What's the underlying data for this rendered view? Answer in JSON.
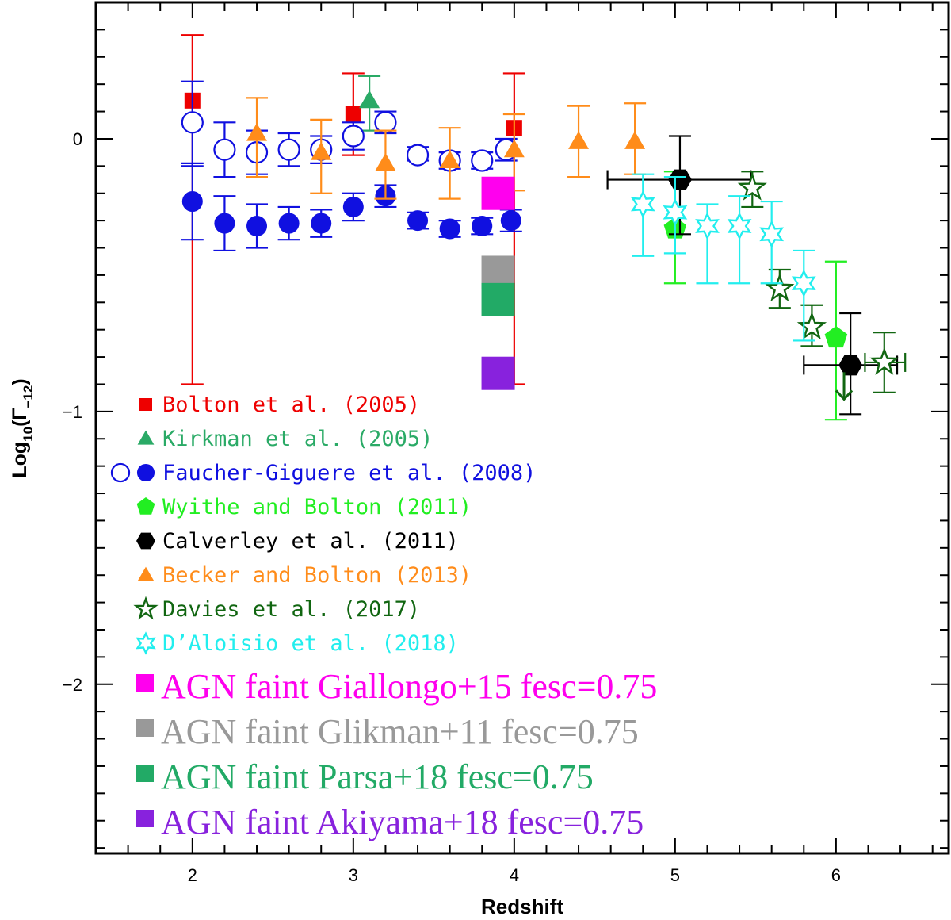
{
  "chart_data": {
    "type": "scatter",
    "xlabel": "Redshift",
    "ylabel_main": "Log",
    "ylabel_sub": "10",
    "ylabel_paren": "(Γ",
    "ylabel_paren_sub": "−12",
    "ylabel_close": ")",
    "xlim": [
      1.4,
      6.7
    ],
    "ylim": [
      -2.62,
      0.5
    ],
    "x_ticks": [
      2,
      3,
      4,
      5,
      6
    ],
    "y_ticks": [
      0,
      -1,
      -2
    ],
    "y_tick_labels": [
      "0",
      "−1",
      "−2"
    ],
    "colors": {
      "bolton": "#ee0000",
      "kirkman": "#2aaa66",
      "faucher": "#1010e0",
      "wyithe": "#22ee22",
      "calverley": "#000000",
      "becker": "#ff8c1a",
      "davies": "#116611",
      "daloisio": "#22eeee",
      "giallongo": "#ff00ee",
      "glikman": "#999999",
      "parsa": "#22aa66",
      "akiyama": "#8822dd"
    },
    "series": [
      {
        "key": "bolton",
        "marker": "square",
        "points": [
          {
            "x": 2.0,
            "y": 0.14,
            "lo": -0.9,
            "hi": 0.38
          },
          {
            "x": 3.0,
            "y": 0.09,
            "lo": -0.06,
            "hi": 0.24
          },
          {
            "x": 4.0,
            "y": 0.04,
            "lo": -0.9,
            "hi": 0.24
          }
        ]
      },
      {
        "key": "kirkman",
        "marker": "triangle",
        "points": [
          {
            "x": 3.1,
            "y": 0.14,
            "lo": 0.03,
            "hi": 0.23
          }
        ]
      },
      {
        "key": "faucher_open",
        "color_key": "faucher",
        "marker": "circle-open",
        "points": [
          {
            "x": 2.0,
            "y": 0.06,
            "lo": -0.1,
            "hi": 0.21
          },
          {
            "x": 2.2,
            "y": -0.04,
            "lo": -0.14,
            "hi": 0.06
          },
          {
            "x": 2.4,
            "y": -0.05,
            "lo": -0.13,
            "hi": 0.03
          },
          {
            "x": 2.6,
            "y": -0.04,
            "lo": -0.1,
            "hi": 0.02
          },
          {
            "x": 2.8,
            "y": -0.04,
            "lo": -0.09,
            "hi": 0.01
          },
          {
            "x": 3.0,
            "y": 0.01,
            "lo": -0.04,
            "hi": 0.06
          },
          {
            "x": 3.2,
            "y": 0.06,
            "lo": 0.02,
            "hi": 0.1
          },
          {
            "x": 3.4,
            "y": -0.06,
            "lo": -0.08,
            "hi": -0.03
          },
          {
            "x": 3.6,
            "y": -0.08,
            "lo": -0.11,
            "hi": -0.05
          },
          {
            "x": 3.8,
            "y": -0.08,
            "lo": -0.11,
            "hi": -0.05
          },
          {
            "x": 3.95,
            "y": -0.04,
            "lo": -0.08,
            "hi": 0.0
          }
        ]
      },
      {
        "key": "faucher_filled",
        "color_key": "faucher",
        "marker": "circle",
        "points": [
          {
            "x": 2.0,
            "y": -0.23,
            "lo": -0.37,
            "hi": -0.09
          },
          {
            "x": 2.2,
            "y": -0.31,
            "lo": -0.41,
            "hi": -0.21
          },
          {
            "x": 2.4,
            "y": -0.32,
            "lo": -0.4,
            "hi": -0.24
          },
          {
            "x": 2.6,
            "y": -0.31,
            "lo": -0.37,
            "hi": -0.25
          },
          {
            "x": 2.8,
            "y": -0.31,
            "lo": -0.36,
            "hi": -0.26
          },
          {
            "x": 3.0,
            "y": -0.25,
            "lo": -0.3,
            "hi": -0.2
          },
          {
            "x": 3.2,
            "y": -0.21,
            "lo": -0.25,
            "hi": -0.17
          },
          {
            "x": 3.4,
            "y": -0.3,
            "lo": -0.33,
            "hi": -0.27
          },
          {
            "x": 3.6,
            "y": -0.33,
            "lo": -0.36,
            "hi": -0.3
          },
          {
            "x": 3.8,
            "y": -0.32,
            "lo": -0.35,
            "hi": -0.29
          },
          {
            "x": 3.98,
            "y": -0.3,
            "lo": -0.34,
            "hi": -0.26
          }
        ]
      },
      {
        "key": "wyithe",
        "marker": "pentagon",
        "points": [
          {
            "x": 5.0,
            "y": -0.33,
            "lo": -0.53,
            "hi": -0.12
          },
          {
            "x": 6.0,
            "y": -0.73,
            "lo": -1.03,
            "hi": -0.45
          }
        ]
      },
      {
        "key": "calverley",
        "marker": "hexagon",
        "points": [
          {
            "x": 5.03,
            "y": -0.15,
            "lo": -0.35,
            "hi": 0.01,
            "xlo": 4.58,
            "xhi": 5.47
          },
          {
            "x": 6.09,
            "y": -0.83,
            "lo": -1.01,
            "hi": -0.64,
            "xlo": 5.8,
            "xhi": 6.38
          }
        ]
      },
      {
        "key": "becker",
        "marker": "triangle",
        "points": [
          {
            "x": 2.4,
            "y": 0.02,
            "lo": -0.14,
            "hi": 0.15
          },
          {
            "x": 2.8,
            "y": -0.05,
            "lo": -0.2,
            "hi": 0.07
          },
          {
            "x": 3.2,
            "y": -0.09,
            "lo": -0.22,
            "hi": 0.03
          },
          {
            "x": 3.6,
            "y": -0.08,
            "lo": -0.22,
            "hi": 0.04
          },
          {
            "x": 4.0,
            "y": -0.04,
            "lo": -0.19,
            "hi": 0.09
          },
          {
            "x": 4.4,
            "y": -0.01,
            "lo": -0.14,
            "hi": 0.12
          },
          {
            "x": 4.75,
            "y": -0.01,
            "lo": -0.13,
            "hi": 0.13
          }
        ]
      },
      {
        "key": "davies",
        "marker": "star-open",
        "points": [
          {
            "x": 5.48,
            "y": -0.18,
            "lo": -0.25,
            "hi": -0.12
          },
          {
            "x": 5.65,
            "y": -0.55,
            "lo": -0.62,
            "hi": -0.48
          },
          {
            "x": 5.85,
            "y": -0.69,
            "lo": -0.76,
            "hi": -0.61
          },
          {
            "x": 6.3,
            "y": -0.82,
            "lo": -0.93,
            "hi": -0.71,
            "xlo": 6.18,
            "xhi": 6.43
          }
        ]
      },
      {
        "key": "daloisio",
        "marker": "burst-open",
        "points": [
          {
            "x": 4.8,
            "y": -0.24,
            "lo": -0.43,
            "hi": -0.13
          },
          {
            "x": 5.0,
            "y": -0.27,
            "lo": -0.42,
            "hi": -0.14
          },
          {
            "x": 5.2,
            "y": -0.32,
            "lo": -0.53,
            "hi": -0.24
          },
          {
            "x": 5.4,
            "y": -0.32,
            "lo": -0.53,
            "hi": -0.21
          },
          {
            "x": 5.6,
            "y": -0.35,
            "lo": -0.53,
            "hi": -0.23
          },
          {
            "x": 5.8,
            "y": -0.53,
            "lo": -0.74,
            "hi": -0.41
          }
        ]
      },
      {
        "key": "davies_arrow",
        "color_key": "davies",
        "marker": "down-arrow",
        "points": [
          {
            "x": 6.05,
            "y": -0.92
          }
        ]
      }
    ],
    "agn_boxes": [
      {
        "key": "giallongo",
        "x": 3.9,
        "y": -0.2
      },
      {
        "key": "glikman",
        "x": 3.9,
        "y": -0.49
      },
      {
        "key": "parsa",
        "x": 3.9,
        "y": -0.59
      },
      {
        "key": "akiyama",
        "x": 3.9,
        "y": -0.86
      }
    ],
    "legend": [
      {
        "key": "bolton",
        "marker": "square",
        "text": "Bolton et al. (2005)"
      },
      {
        "key": "kirkman",
        "marker": "triangle",
        "text": "Kirkman et al. (2005)"
      },
      {
        "key": "faucher",
        "marker": "circle-pair",
        "text": "Faucher-Giguere et al. (2008)"
      },
      {
        "key": "wyithe",
        "marker": "pentagon",
        "text": "Wyithe and Bolton (2011)"
      },
      {
        "key": "calverley",
        "marker": "hexagon",
        "text": "Calverley et al. (2011)"
      },
      {
        "key": "becker",
        "marker": "triangle",
        "text": "Becker and Bolton (2013)"
      },
      {
        "key": "davies",
        "marker": "star-open",
        "text": "Davies et al. (2017)"
      },
      {
        "key": "daloisio",
        "marker": "burst-open",
        "text": "D’Aloisio et al. (2018)"
      }
    ],
    "legend_agn": [
      {
        "key": "giallongo",
        "text": "AGN faint Giallongo+15 fesc=0.75"
      },
      {
        "key": "glikman",
        "text": "AGN faint Glikman+11 fesc=0.75"
      },
      {
        "key": "parsa",
        "text": "AGN faint Parsa+18 fesc=0.75"
      },
      {
        "key": "akiyama",
        "text": "AGN faint Akiyama+18 fesc=0.75"
      }
    ]
  }
}
